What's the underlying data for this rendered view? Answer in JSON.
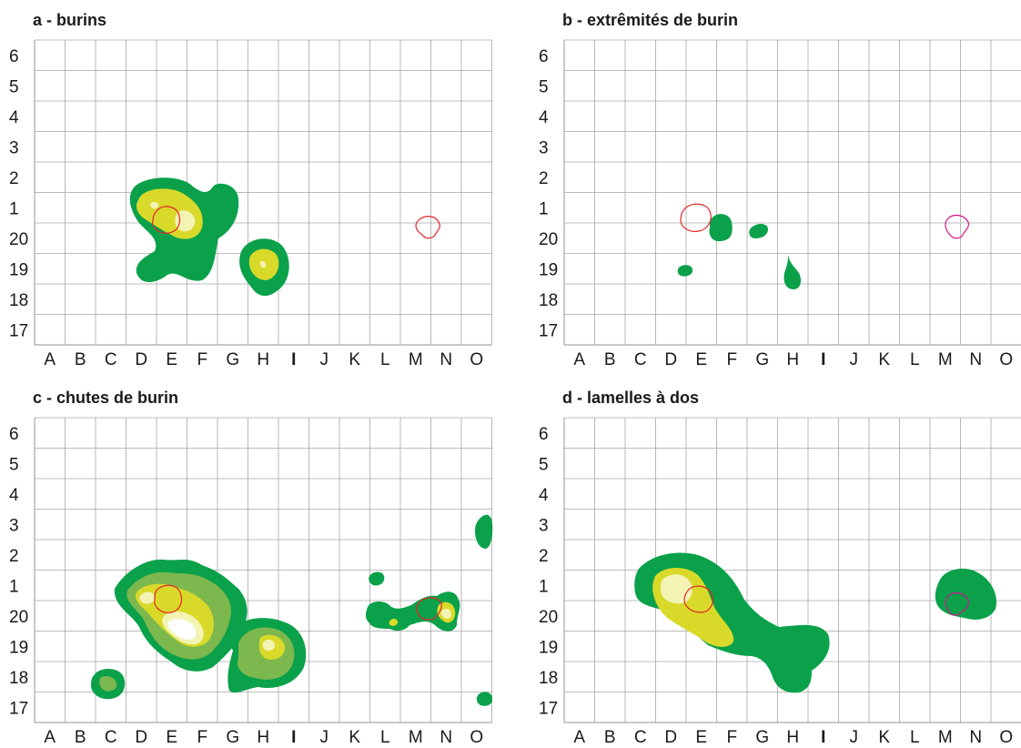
{
  "grid": {
    "columns": [
      "A",
      "B",
      "C",
      "D",
      "E",
      "F",
      "G",
      "H",
      "I",
      "J",
      "K",
      "L",
      "M",
      "N",
      "O"
    ],
    "rows": [
      "6",
      "5",
      "4",
      "3",
      "2",
      "1",
      "20",
      "19",
      "18",
      "17"
    ]
  },
  "colors": {
    "grid_line": "#a6a6a6",
    "level_1": "#0aa14a",
    "level_2": "#7cb84e",
    "level_3": "#d9d92a",
    "level_4": "#f3f3b4",
    "level_5": "#ffffff",
    "outline_red": "#e3262a",
    "outline_magenta": "#d4148b"
  },
  "panels": [
    {
      "id": "a",
      "title": "a - burins"
    },
    {
      "id": "b",
      "title": "b - extrêmités de burin"
    },
    {
      "id": "c",
      "title": "c - chutes de burin"
    },
    {
      "id": "d",
      "title": "d - lamelles à dos"
    }
  ]
}
